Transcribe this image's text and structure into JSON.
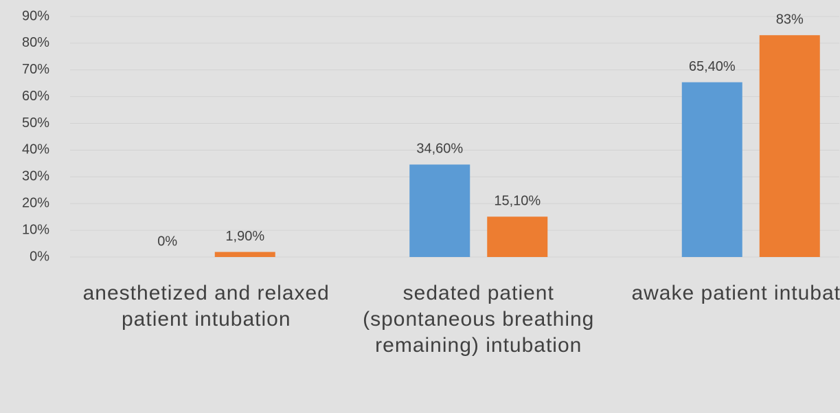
{
  "chart_data": {
    "type": "bar",
    "categories": [
      "anesthetized and relaxed patient intubation",
      "sedated patient (spontaneous breathing remaining) intubation",
      "awake patient intubation"
    ],
    "series": [
      {
        "color": "#5b9bd5",
        "values": [
          0,
          34.6,
          65.4
        ],
        "value_labels": [
          "0%",
          "34,60%",
          "65,40%"
        ]
      },
      {
        "color": "#ed7d31",
        "values": [
          1.9,
          15.1,
          83
        ],
        "value_labels": [
          "1,90%",
          "15,10%",
          "83%"
        ]
      }
    ],
    "ylim": [
      0,
      90
    ],
    "yticks": [
      {
        "value": 0,
        "label": "0%"
      },
      {
        "value": 10,
        "label": "10%"
      },
      {
        "value": 20,
        "label": "20%"
      },
      {
        "value": 30,
        "label": "30%"
      },
      {
        "value": 40,
        "label": "40%"
      },
      {
        "value": 50,
        "label": "50%"
      },
      {
        "value": 60,
        "label": "60%"
      },
      {
        "value": 70,
        "label": "70%"
      },
      {
        "value": 80,
        "label": "80%"
      },
      {
        "value": 90,
        "label": "90%"
      }
    ],
    "grid": true
  }
}
